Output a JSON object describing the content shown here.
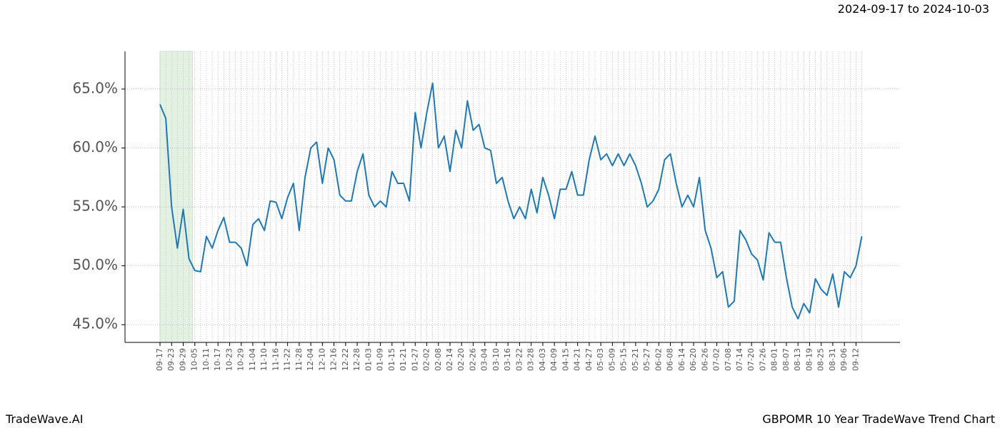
{
  "chart_data": {
    "type": "line",
    "title": "2024-09-17 to 2024-10-03",
    "subtitle": "GBPOMR 10 Year TradeWave Trend Chart",
    "brand": "TradeWave.AI",
    "categories": [
      "09-17",
      null,
      "09-23",
      null,
      "09-29",
      null,
      "10-05",
      null,
      "10-11",
      null,
      "10-17",
      null,
      "10-23",
      null,
      "10-29",
      null,
      "11-04",
      null,
      "11-10",
      null,
      "11-16",
      null,
      "11-22",
      null,
      "11-28",
      null,
      "12-04",
      null,
      "12-10",
      null,
      "12-16",
      null,
      "12-22",
      null,
      "12-28",
      null,
      "01-03",
      null,
      "01-09",
      null,
      "01-15",
      null,
      "01-21",
      null,
      "01-27",
      null,
      "02-02",
      null,
      "02-08",
      null,
      "02-14",
      null,
      "02-20",
      null,
      "02-26",
      null,
      "03-04",
      null,
      "03-10",
      null,
      "03-16",
      null,
      "03-22",
      null,
      "03-28",
      null,
      "04-03",
      null,
      "04-09",
      null,
      "04-15",
      null,
      "04-21",
      null,
      "04-27",
      null,
      "05-03",
      null,
      "05-09",
      null,
      "05-15",
      null,
      "05-21",
      null,
      "05-27",
      null,
      "06-02",
      null,
      "06-08",
      null,
      "06-14",
      null,
      "06-20",
      null,
      "06-26",
      null,
      "07-02",
      null,
      "07-08",
      null,
      "07-14",
      null,
      "07-20",
      null,
      "07-26",
      null,
      "08-01",
      null,
      "08-07",
      null,
      "08-13",
      null,
      "08-19",
      null,
      "08-25",
      null,
      "08-31",
      null,
      "09-06",
      null,
      "09-12",
      null
    ],
    "values": [
      63.7,
      62.5,
      55,
      51.5,
      54.8,
      50.6,
      49.6,
      49.5,
      52.5,
      51.5,
      53,
      54.1,
      52,
      52,
      51.5,
      50,
      53.5,
      54,
      53,
      55.5,
      55.4,
      54,
      55.8,
      57,
      53,
      57.5,
      60,
      60.5,
      57,
      60,
      59,
      56,
      55.5,
      55.5,
      58,
      59.5,
      56,
      55,
      55.5,
      55,
      58,
      57,
      57,
      55.5,
      63,
      60,
      63,
      65.5,
      60,
      61,
      58,
      61.5,
      60,
      64,
      61.5,
      62,
      60,
      59.8,
      57,
      57.5,
      55.5,
      54,
      55,
      54,
      56.5,
      54.5,
      57.5,
      56,
      54,
      56.5,
      56.5,
      58,
      56,
      56,
      59,
      61,
      59,
      59.5,
      58.5,
      59.5,
      58.5,
      59.5,
      58.5,
      57,
      55,
      55.5,
      56.5,
      59,
      59.5,
      57,
      55,
      56,
      55,
      57.5,
      53,
      51.5,
      49,
      49.5,
      46.5,
      47,
      53,
      52.2,
      51,
      50.5,
      48.8,
      52.8,
      52,
      52,
      49,
      46.5,
      45.5,
      46.8,
      46,
      48.9,
      48,
      47.5,
      49.3,
      46.5,
      49.5,
      49,
      50,
      52.5
    ],
    "color": "#1f77b4",
    "ylim": [
      43.5,
      68.2
    ],
    "yticks": [
      {
        "value": 45,
        "label": "45.0%"
      },
      {
        "value": 50,
        "label": "50.0%"
      },
      {
        "value": 55,
        "label": "55.0%"
      },
      {
        "value": 60,
        "label": "60.0%"
      },
      {
        "value": 65,
        "label": "65.0%"
      }
    ],
    "grid": true
  }
}
